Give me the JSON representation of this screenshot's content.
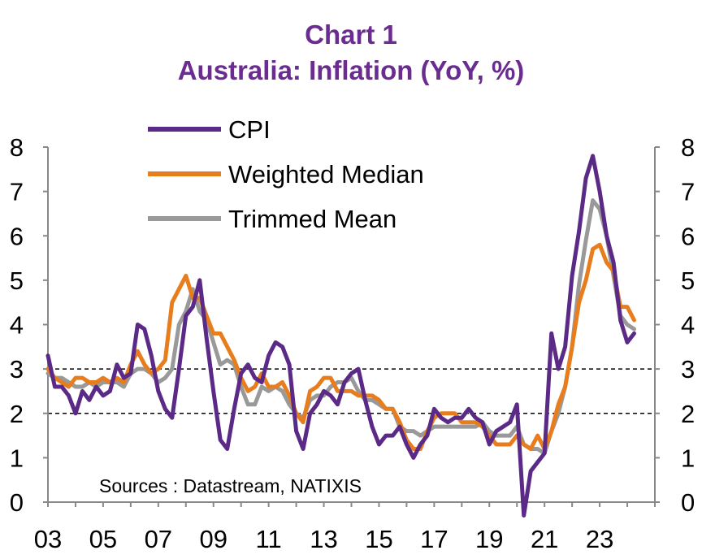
{
  "chart_data": {
    "type": "line",
    "title": "Chart 1",
    "subtitle": "Australia: Inflation (YoY, %)",
    "source": "Sources : Datastream, NATIXIS",
    "x_tick_labels": [
      "03",
      "05",
      "07",
      "09",
      "11",
      "13",
      "15",
      "17",
      "19",
      "21",
      "23"
    ],
    "x_tick_years": [
      2003,
      2005,
      2007,
      2009,
      2011,
      2013,
      2015,
      2017,
      2019,
      2021,
      2023
    ],
    "xlim": [
      2003,
      2025
    ],
    "ylim": [
      0,
      8
    ],
    "y_ticks": [
      0,
      1,
      2,
      3,
      4,
      5,
      6,
      7,
      8
    ],
    "reference_lines": [
      2,
      3
    ],
    "grid": false,
    "legend_position": "top-left",
    "series": [
      {
        "name": "CPI",
        "color": "#5b2a86",
        "x": [
          2003.0,
          2003.25,
          2003.5,
          2003.75,
          2004.0,
          2004.25,
          2004.5,
          2004.75,
          2005.0,
          2005.25,
          2005.5,
          2005.75,
          2006.0,
          2006.25,
          2006.5,
          2006.75,
          2007.0,
          2007.25,
          2007.5,
          2007.75,
          2008.0,
          2008.25,
          2008.5,
          2008.75,
          2009.0,
          2009.25,
          2009.5,
          2009.75,
          2010.0,
          2010.25,
          2010.5,
          2010.75,
          2011.0,
          2011.25,
          2011.5,
          2011.75,
          2012.0,
          2012.25,
          2012.5,
          2012.75,
          2013.0,
          2013.25,
          2013.5,
          2013.75,
          2014.0,
          2014.25,
          2014.5,
          2014.75,
          2015.0,
          2015.25,
          2015.5,
          2015.75,
          2016.0,
          2016.25,
          2016.5,
          2016.75,
          2017.0,
          2017.25,
          2017.5,
          2017.75,
          2018.0,
          2018.25,
          2018.5,
          2018.75,
          2019.0,
          2019.25,
          2019.5,
          2019.75,
          2020.0,
          2020.25,
          2020.5,
          2020.75,
          2021.0,
          2021.25,
          2021.5,
          2021.75,
          2022.0,
          2022.25,
          2022.5,
          2022.75,
          2023.0,
          2023.25,
          2023.5,
          2023.75,
          2024.0,
          2024.25
        ],
        "values": [
          3.3,
          2.6,
          2.6,
          2.4,
          2.0,
          2.5,
          2.3,
          2.6,
          2.4,
          2.5,
          3.1,
          2.8,
          2.9,
          4.0,
          3.9,
          3.3,
          2.5,
          2.1,
          1.9,
          3.0,
          4.2,
          4.4,
          5.0,
          3.7,
          2.5,
          1.4,
          1.2,
          2.1,
          2.9,
          3.1,
          2.8,
          2.7,
          3.3,
          3.6,
          3.5,
          3.1,
          1.6,
          1.2,
          2.0,
          2.2,
          2.5,
          2.4,
          2.2,
          2.7,
          2.9,
          3.0,
          2.3,
          1.7,
          1.3,
          1.5,
          1.5,
          1.7,
          1.3,
          1.0,
          1.3,
          1.5,
          2.1,
          1.9,
          1.8,
          1.9,
          1.9,
          2.1,
          1.9,
          1.8,
          1.3,
          1.6,
          1.7,
          1.8,
          2.2,
          -0.3,
          0.7,
          0.9,
          1.1,
          3.8,
          3.0,
          3.5,
          5.1,
          6.1,
          7.3,
          7.8,
          7.0,
          6.0,
          5.4,
          4.1,
          3.6,
          3.8
        ]
      },
      {
        "name": "Weighted Median",
        "color": "#e87d1e",
        "x": [
          2003.0,
          2003.25,
          2003.5,
          2003.75,
          2004.0,
          2004.25,
          2004.5,
          2004.75,
          2005.0,
          2005.25,
          2005.5,
          2005.75,
          2006.0,
          2006.25,
          2006.5,
          2006.75,
          2007.0,
          2007.25,
          2007.5,
          2007.75,
          2008.0,
          2008.25,
          2008.5,
          2008.75,
          2009.0,
          2009.25,
          2009.5,
          2009.75,
          2010.0,
          2010.25,
          2010.5,
          2010.75,
          2011.0,
          2011.25,
          2011.5,
          2011.75,
          2012.0,
          2012.25,
          2012.5,
          2012.75,
          2013.0,
          2013.25,
          2013.5,
          2013.75,
          2014.0,
          2014.25,
          2014.5,
          2014.75,
          2015.0,
          2015.25,
          2015.5,
          2015.75,
          2016.0,
          2016.25,
          2016.5,
          2016.75,
          2017.0,
          2017.25,
          2017.5,
          2017.75,
          2018.0,
          2018.25,
          2018.5,
          2018.75,
          2019.0,
          2019.25,
          2019.5,
          2019.75,
          2020.0,
          2020.25,
          2020.5,
          2020.75,
          2021.0,
          2021.25,
          2021.5,
          2021.75,
          2022.0,
          2022.25,
          2022.5,
          2022.75,
          2023.0,
          2023.25,
          2023.5,
          2023.75,
          2024.0,
          2024.25
        ],
        "values": [
          3.0,
          2.8,
          2.7,
          2.6,
          2.8,
          2.8,
          2.7,
          2.7,
          2.8,
          2.7,
          2.8,
          2.7,
          3.1,
          3.4,
          3.1,
          2.9,
          3.0,
          3.2,
          4.5,
          4.8,
          5.1,
          4.6,
          4.6,
          4.2,
          3.8,
          3.8,
          3.5,
          3.2,
          2.8,
          2.5,
          2.6,
          2.9,
          2.6,
          2.6,
          2.7,
          2.4,
          2.0,
          1.8,
          2.5,
          2.6,
          2.8,
          2.8,
          2.5,
          2.5,
          2.5,
          2.4,
          2.4,
          2.4,
          2.3,
          2.1,
          2.1,
          1.8,
          1.4,
          1.2,
          1.2,
          1.6,
          1.9,
          2.0,
          2.0,
          2.0,
          1.8,
          1.8,
          1.8,
          1.7,
          1.5,
          1.3,
          1.3,
          1.3,
          1.5,
          1.3,
          1.2,
          1.5,
          1.2,
          1.6,
          2.2,
          2.6,
          3.5,
          4.5,
          5.0,
          5.7,
          5.8,
          5.4,
          5.2,
          4.4,
          4.4,
          4.1
        ]
      },
      {
        "name": "Trimmed Mean",
        "color": "#999999",
        "x": [
          2003.0,
          2003.25,
          2003.5,
          2003.75,
          2004.0,
          2004.25,
          2004.5,
          2004.75,
          2005.0,
          2005.25,
          2005.5,
          2005.75,
          2006.0,
          2006.25,
          2006.5,
          2006.75,
          2007.0,
          2007.25,
          2007.5,
          2007.75,
          2008.0,
          2008.25,
          2008.5,
          2008.75,
          2009.0,
          2009.25,
          2009.5,
          2009.75,
          2010.0,
          2010.25,
          2010.5,
          2010.75,
          2011.0,
          2011.25,
          2011.5,
          2011.75,
          2012.0,
          2012.25,
          2012.5,
          2012.75,
          2013.0,
          2013.25,
          2013.5,
          2013.75,
          2014.0,
          2014.25,
          2014.5,
          2014.75,
          2015.0,
          2015.25,
          2015.5,
          2015.75,
          2016.0,
          2016.25,
          2016.5,
          2016.75,
          2017.0,
          2017.25,
          2017.5,
          2017.75,
          2018.0,
          2018.25,
          2018.5,
          2018.75,
          2019.0,
          2019.25,
          2019.5,
          2019.75,
          2020.0,
          2020.25,
          2020.5,
          2020.75,
          2021.0,
          2021.25,
          2021.5,
          2021.75,
          2022.0,
          2022.25,
          2022.5,
          2022.75,
          2023.0,
          2023.25,
          2023.5,
          2023.75,
          2024.0,
          2024.25
        ],
        "values": [
          2.9,
          2.8,
          2.8,
          2.7,
          2.6,
          2.6,
          2.7,
          2.6,
          2.7,
          2.7,
          2.7,
          2.6,
          2.9,
          3.0,
          3.0,
          2.9,
          2.7,
          2.8,
          3.0,
          4.0,
          4.3,
          4.8,
          4.3,
          4.1,
          3.6,
          3.1,
          3.2,
          3.1,
          2.6,
          2.2,
          2.2,
          2.6,
          2.5,
          2.6,
          2.5,
          2.2,
          2.0,
          1.9,
          2.3,
          2.4,
          2.4,
          2.6,
          2.7,
          2.7,
          2.8,
          2.5,
          2.3,
          2.3,
          2.2,
          2.1,
          2.1,
          1.7,
          1.6,
          1.6,
          1.5,
          1.6,
          1.7,
          1.7,
          1.7,
          1.7,
          1.7,
          1.7,
          1.7,
          1.8,
          1.6,
          1.5,
          1.5,
          1.5,
          1.7,
          1.3,
          1.2,
          1.2,
          1.1,
          1.6,
          2.0,
          2.6,
          3.5,
          4.9,
          5.9,
          6.8,
          6.6,
          6.0,
          5.1,
          4.2,
          4.0,
          3.9
        ]
      }
    ]
  }
}
